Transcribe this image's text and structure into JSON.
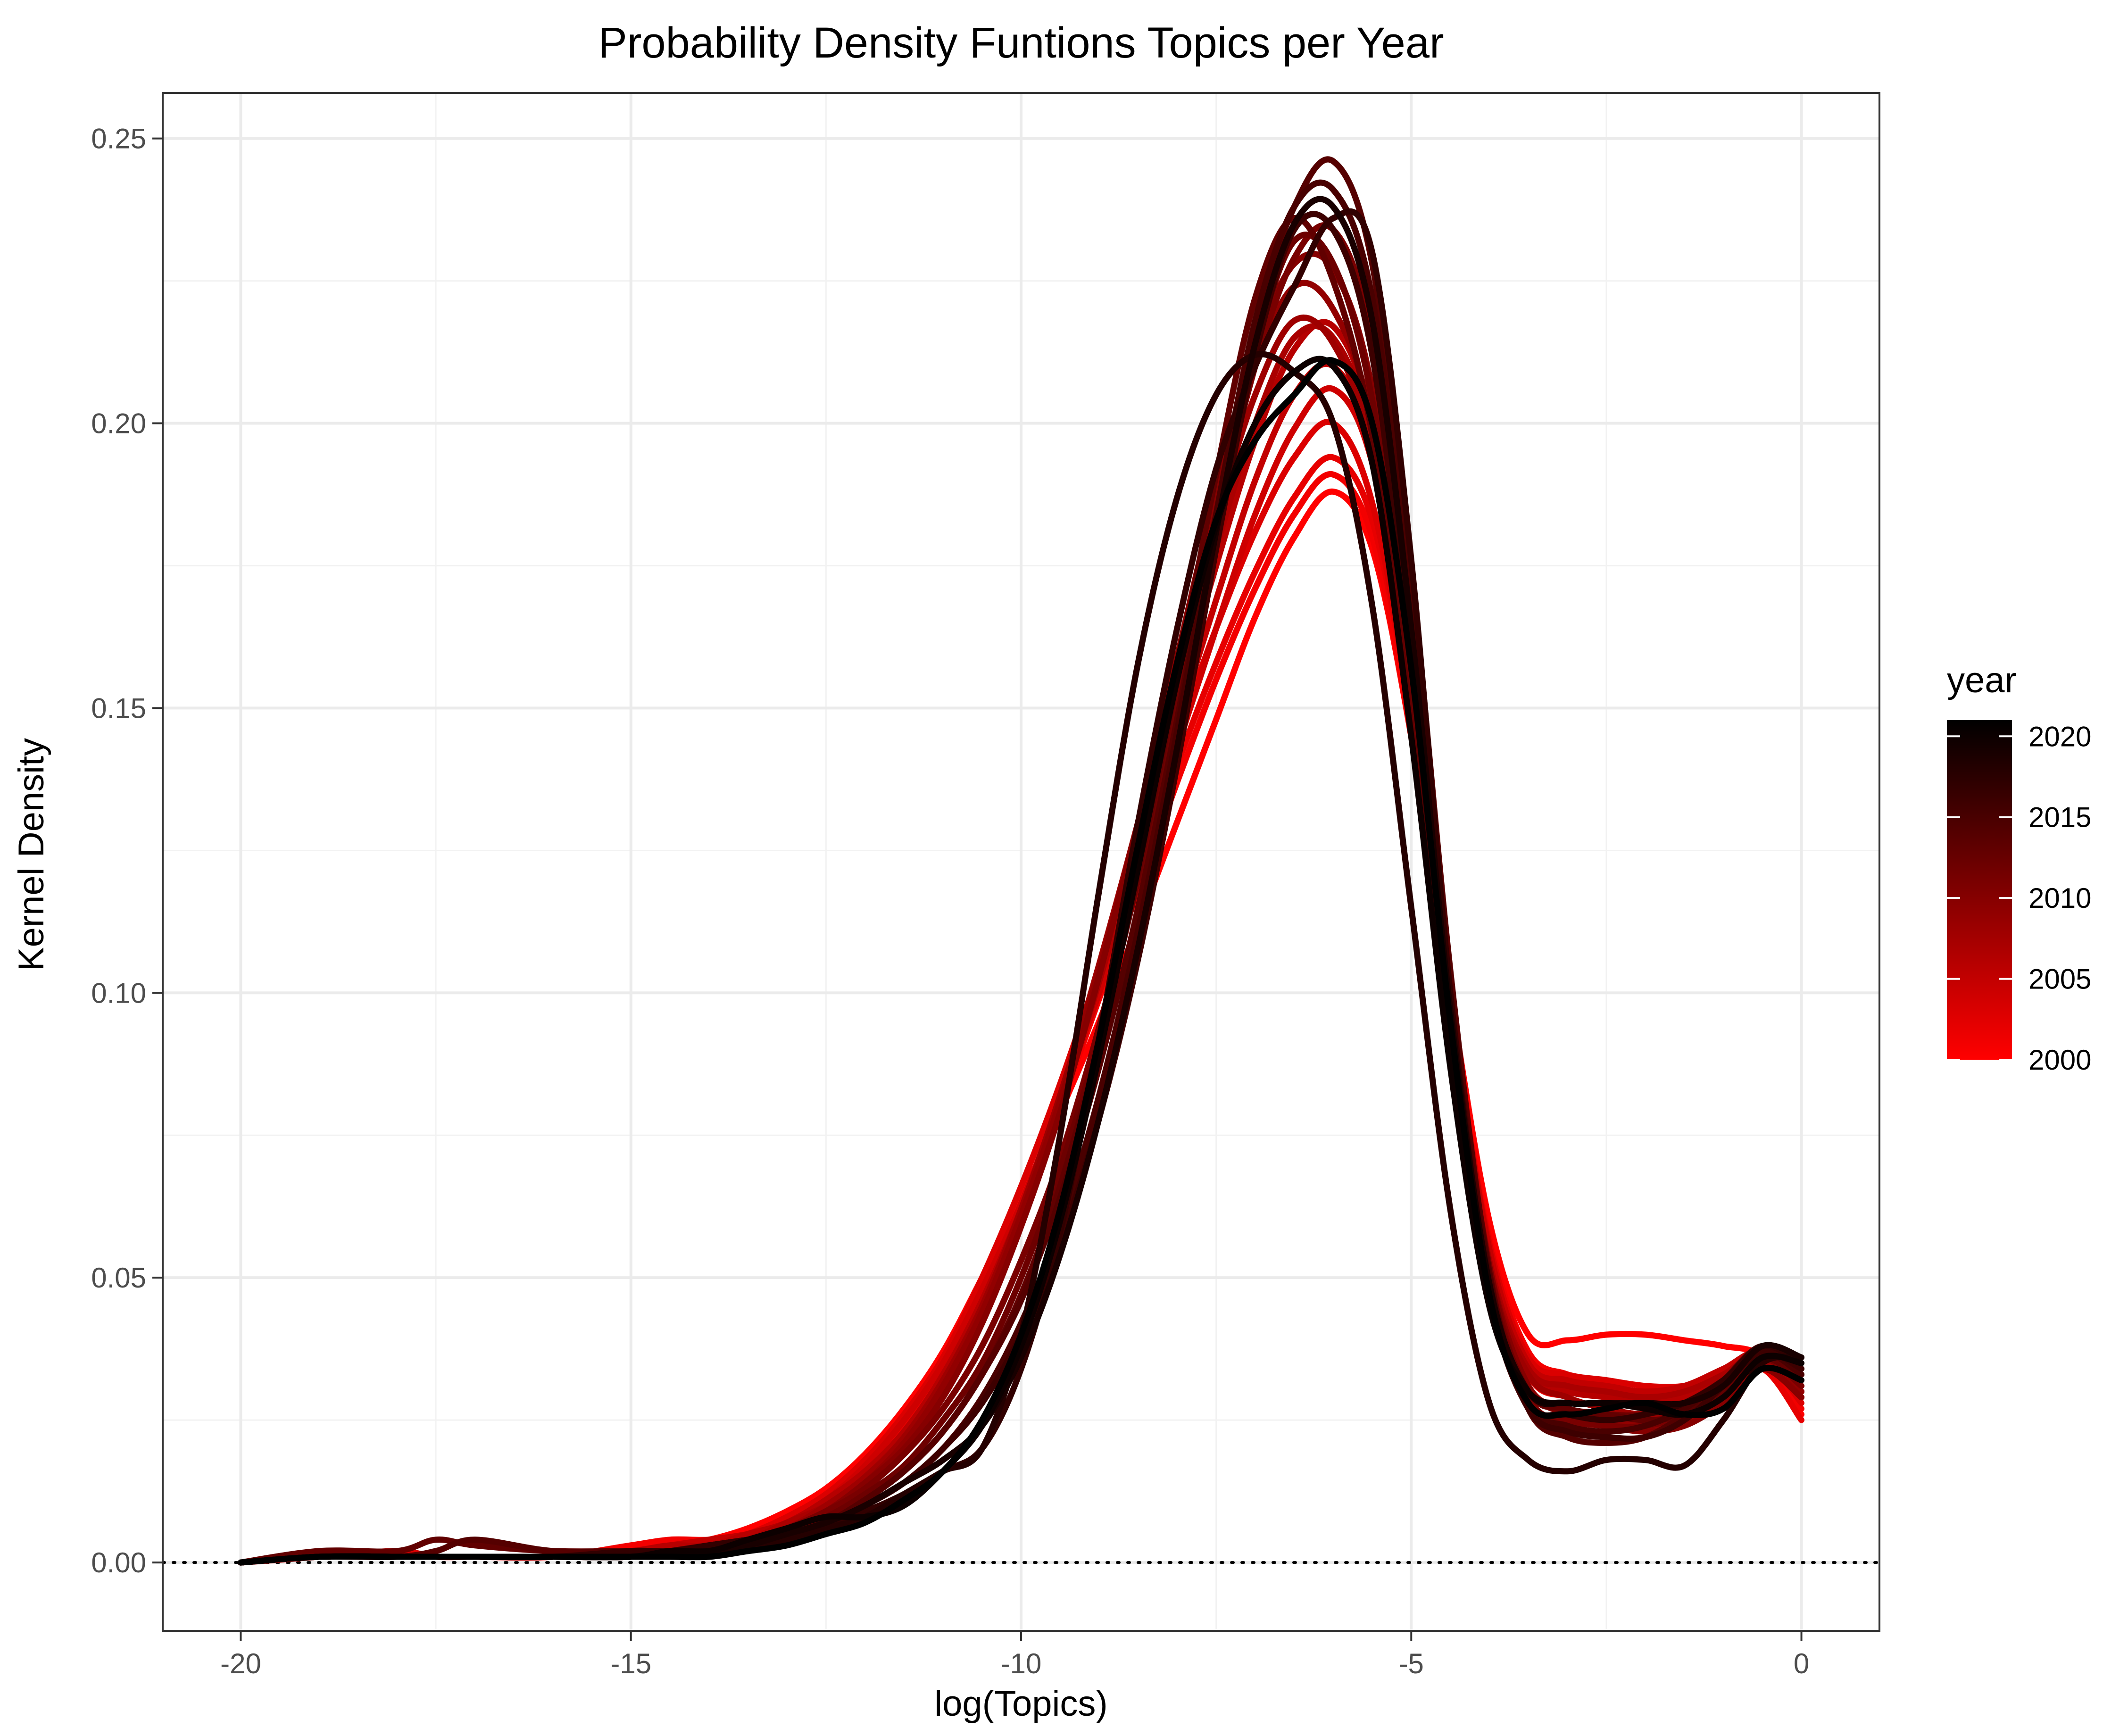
{
  "chart_data": {
    "type": "line",
    "title": "Probability Density Funtions Topics per Year",
    "xlabel": "log(Topics)",
    "ylabel": "Kernel Density",
    "xlim": [
      -21,
      1
    ],
    "ylim": [
      -0.012,
      0.258
    ],
    "x_ticks": [
      -20,
      -15,
      -10,
      -5,
      0
    ],
    "x_tick_labels": [
      "-20",
      "-15",
      "-10",
      "-5",
      "0"
    ],
    "y_ticks": [
      0.0,
      0.05,
      0.1,
      0.15,
      0.2,
      0.25
    ],
    "y_tick_labels": [
      "0.00",
      "0.05",
      "0.10",
      "0.15",
      "0.20",
      "0.25"
    ],
    "grid": true,
    "reference_line": {
      "y": 0,
      "style": "dotted"
    },
    "color_scale": {
      "variable": "year",
      "title": "year",
      "low": {
        "value": 2000,
        "color": "#ff0000"
      },
      "high": {
        "value": 2021,
        "color": "#000000"
      },
      "breaks": [
        2000,
        2005,
        2010,
        2015,
        2020
      ],
      "break_labels": [
        "2000",
        "2005",
        "2010",
        "2015",
        "2020"
      ],
      "legend_position": "right"
    },
    "x": [
      -20,
      -19,
      -18,
      -17.5,
      -17,
      -16,
      -15,
      -14.5,
      -14,
      -13.5,
      -13,
      -12.5,
      -12,
      -11.5,
      -11,
      -10.5,
      -10,
      -9.5,
      -9,
      -8.5,
      -8,
      -7.5,
      -7,
      -6.5,
      -6,
      -5.5,
      -5,
      -4.5,
      -4,
      -3.5,
      -3,
      -2.5,
      -2,
      -1.5,
      -1,
      -0.5,
      0
    ],
    "series": [
      {
        "year": 2000,
        "values": [
          0,
          0.001,
          0.001,
          0.001,
          0.001,
          0.001,
          0.002,
          0.003,
          0.004,
          0.006,
          0.009,
          0.013,
          0.019,
          0.027,
          0.037,
          0.05,
          0.064,
          0.079,
          0.095,
          0.112,
          0.13,
          0.148,
          0.166,
          0.18,
          0.188,
          0.178,
          0.145,
          0.1,
          0.06,
          0.04,
          0.039,
          0.04,
          0.04,
          0.039,
          0.038,
          0.036,
          0.026
        ]
      },
      {
        "year": 2001,
        "values": [
          0,
          0.001,
          0.001,
          0.001,
          0.001,
          0.001,
          0.003,
          0.004,
          0.004,
          0.005,
          0.007,
          0.011,
          0.016,
          0.024,
          0.035,
          0.048,
          0.063,
          0.08,
          0.099,
          0.118,
          0.137,
          0.155,
          0.171,
          0.184,
          0.191,
          0.18,
          0.145,
          0.097,
          0.057,
          0.037,
          0.033,
          0.031,
          0.03,
          0.031,
          0.033,
          0.035,
          0.027
        ]
      },
      {
        "year": 2002,
        "values": [
          0,
          0.001,
          0.001,
          0.001,
          0.001,
          0.001,
          0.001,
          0.002,
          0.002,
          0.003,
          0.006,
          0.01,
          0.016,
          0.024,
          0.035,
          0.048,
          0.063,
          0.081,
          0.1,
          0.12,
          0.14,
          0.158,
          0.174,
          0.187,
          0.194,
          0.183,
          0.148,
          0.098,
          0.055,
          0.033,
          0.029,
          0.027,
          0.026,
          0.027,
          0.03,
          0.034,
          0.025
        ]
      },
      {
        "year": 2003,
        "values": [
          0,
          0.001,
          0.002,
          0.001,
          0.001,
          0.001,
          0.002,
          0.003,
          0.003,
          0.005,
          0.008,
          0.012,
          0.018,
          0.026,
          0.036,
          0.05,
          0.066,
          0.084,
          0.104,
          0.124,
          0.145,
          0.164,
          0.181,
          0.194,
          0.2,
          0.186,
          0.148,
          0.097,
          0.056,
          0.036,
          0.033,
          0.032,
          0.031,
          0.031,
          0.033,
          0.036,
          0.028
        ]
      },
      {
        "year": 2004,
        "values": [
          0,
          0.001,
          0.001,
          0.001,
          0.001,
          0.001,
          0.002,
          0.003,
          0.003,
          0.004,
          0.007,
          0.011,
          0.017,
          0.025,
          0.035,
          0.048,
          0.063,
          0.081,
          0.1,
          0.121,
          0.143,
          0.164,
          0.184,
          0.199,
          0.206,
          0.193,
          0.153,
          0.099,
          0.055,
          0.034,
          0.031,
          0.03,
          0.029,
          0.029,
          0.032,
          0.036,
          0.029
        ]
      },
      {
        "year": 2005,
        "values": [
          0,
          0.001,
          0.001,
          0.001,
          0.001,
          0.001,
          0.002,
          0.003,
          0.004,
          0.005,
          0.007,
          0.011,
          0.016,
          0.023,
          0.033,
          0.046,
          0.062,
          0.081,
          0.102,
          0.124,
          0.147,
          0.169,
          0.19,
          0.205,
          0.21,
          0.195,
          0.153,
          0.098,
          0.055,
          0.035,
          0.032,
          0.031,
          0.03,
          0.031,
          0.034,
          0.037,
          0.03
        ]
      },
      {
        "year": 2006,
        "values": [
          0,
          0.001,
          0.001,
          0.001,
          0.001,
          0.001,
          0.002,
          0.003,
          0.003,
          0.005,
          0.007,
          0.011,
          0.016,
          0.023,
          0.033,
          0.046,
          0.062,
          0.081,
          0.103,
          0.126,
          0.151,
          0.175,
          0.197,
          0.213,
          0.217,
          0.2,
          0.155,
          0.097,
          0.052,
          0.033,
          0.03,
          0.029,
          0.028,
          0.029,
          0.032,
          0.036,
          0.029
        ]
      },
      {
        "year": 2007,
        "values": [
          0,
          0.001,
          0.001,
          0.001,
          0.001,
          0.001,
          0.002,
          0.002,
          0.003,
          0.004,
          0.007,
          0.01,
          0.015,
          0.022,
          0.032,
          0.045,
          0.061,
          0.08,
          0.102,
          0.126,
          0.152,
          0.178,
          0.2,
          0.215,
          0.215,
          0.197,
          0.152,
          0.096,
          0.053,
          0.034,
          0.031,
          0.03,
          0.029,
          0.03,
          0.033,
          0.037,
          0.031
        ]
      },
      {
        "year": 2008,
        "values": [
          0,
          0.001,
          0.001,
          0.001,
          0.001,
          0.001,
          0.002,
          0.002,
          0.003,
          0.004,
          0.006,
          0.01,
          0.015,
          0.022,
          0.032,
          0.045,
          0.062,
          0.082,
          0.105,
          0.13,
          0.157,
          0.183,
          0.205,
          0.218,
          0.214,
          0.195,
          0.15,
          0.094,
          0.052,
          0.033,
          0.029,
          0.027,
          0.026,
          0.027,
          0.031,
          0.036,
          0.03
        ]
      },
      {
        "year": 2009,
        "values": [
          0,
          0.001,
          0.001,
          0.001,
          0.001,
          0.001,
          0.002,
          0.002,
          0.003,
          0.004,
          0.006,
          0.009,
          0.014,
          0.021,
          0.031,
          0.044,
          0.061,
          0.081,
          0.104,
          0.13,
          0.158,
          0.186,
          0.21,
          0.224,
          0.22,
          0.2,
          0.153,
          0.095,
          0.051,
          0.031,
          0.027,
          0.025,
          0.024,
          0.025,
          0.029,
          0.035,
          0.03
        ]
      },
      {
        "year": 2010,
        "values": [
          0,
          0.001,
          0.001,
          0.001,
          0.001,
          0.001,
          0.002,
          0.002,
          0.003,
          0.004,
          0.006,
          0.009,
          0.014,
          0.02,
          0.029,
          0.042,
          0.059,
          0.079,
          0.103,
          0.13,
          0.159,
          0.188,
          0.213,
          0.228,
          0.227,
          0.206,
          0.157,
          0.096,
          0.052,
          0.031,
          0.026,
          0.024,
          0.023,
          0.024,
          0.028,
          0.034,
          0.029
        ]
      },
      {
        "year": 2011,
        "values": [
          0,
          0.001,
          0.001,
          0.001,
          0.001,
          0.001,
          0.002,
          0.002,
          0.003,
          0.004,
          0.006,
          0.009,
          0.013,
          0.019,
          0.027,
          0.038,
          0.053,
          0.071,
          0.094,
          0.121,
          0.151,
          0.182,
          0.21,
          0.229,
          0.234,
          0.215,
          0.165,
          0.1,
          0.052,
          0.029,
          0.025,
          0.024,
          0.024,
          0.026,
          0.031,
          0.036,
          0.031
        ]
      },
      {
        "year": 2012,
        "values": [
          0,
          0.001,
          0.001,
          0.001,
          0.001,
          0.001,
          0.002,
          0.002,
          0.003,
          0.004,
          0.006,
          0.008,
          0.012,
          0.017,
          0.025,
          0.035,
          0.05,
          0.069,
          0.092,
          0.12,
          0.151,
          0.184,
          0.213,
          0.232,
          0.228,
          0.204,
          0.154,
          0.094,
          0.05,
          0.03,
          0.027,
          0.026,
          0.026,
          0.028,
          0.032,
          0.037,
          0.033
        ]
      },
      {
        "year": 2013,
        "values": [
          0,
          0.002,
          0.002,
          0.004,
          0.003,
          0.002,
          0.002,
          0.002,
          0.003,
          0.004,
          0.005,
          0.007,
          0.011,
          0.016,
          0.023,
          0.033,
          0.047,
          0.066,
          0.091,
          0.121,
          0.155,
          0.191,
          0.222,
          0.236,
          0.225,
          0.198,
          0.147,
          0.088,
          0.048,
          0.03,
          0.027,
          0.026,
          0.025,
          0.026,
          0.03,
          0.036,
          0.032
        ]
      },
      {
        "year": 2014,
        "values": [
          0,
          0.001,
          0.001,
          0.002,
          0.004,
          0.002,
          0.002,
          0.002,
          0.003,
          0.004,
          0.005,
          0.007,
          0.011,
          0.016,
          0.023,
          0.033,
          0.046,
          0.064,
          0.087,
          0.115,
          0.148,
          0.184,
          0.217,
          0.238,
          0.246,
          0.228,
          0.174,
          0.104,
          0.051,
          0.027,
          0.022,
          0.021,
          0.022,
          0.026,
          0.032,
          0.038,
          0.034
        ]
      },
      {
        "year": 2015,
        "values": [
          0,
          0.001,
          0.001,
          0.001,
          0.001,
          0.001,
          0.001,
          0.002,
          0.003,
          0.004,
          0.005,
          0.007,
          0.01,
          0.014,
          0.02,
          0.029,
          0.042,
          0.059,
          0.082,
          0.111,
          0.146,
          0.184,
          0.218,
          0.238,
          0.241,
          0.222,
          0.168,
          0.1,
          0.05,
          0.028,
          0.024,
          0.023,
          0.024,
          0.027,
          0.032,
          0.037,
          0.033
        ]
      },
      {
        "year": 2016,
        "values": [
          0,
          0.001,
          0.001,
          0.001,
          0.001,
          0.001,
          0.001,
          0.002,
          0.002,
          0.003,
          0.005,
          0.007,
          0.01,
          0.014,
          0.02,
          0.028,
          0.04,
          0.056,
          0.078,
          0.106,
          0.14,
          0.178,
          0.212,
          0.234,
          0.234,
          0.212,
          0.158,
          0.093,
          0.047,
          0.027,
          0.023,
          0.022,
          0.022,
          0.025,
          0.031,
          0.037,
          0.034
        ]
      },
      {
        "year": 2017,
        "values": [
          0,
          0.001,
          0.001,
          0.001,
          0.001,
          0.001,
          0.002,
          0.002,
          0.003,
          0.004,
          0.005,
          0.007,
          0.009,
          0.012,
          0.016,
          0.02,
          0.034,
          0.058,
          0.092,
          0.13,
          0.164,
          0.192,
          0.21,
          0.224,
          0.236,
          0.23,
          0.176,
          0.1,
          0.048,
          0.028,
          0.026,
          0.025,
          0.026,
          0.028,
          0.032,
          0.038,
          0.035
        ]
      },
      {
        "year": 2018,
        "values": [
          0,
          0.001,
          0.001,
          0.001,
          0.001,
          0.001,
          0.001,
          0.002,
          0.002,
          0.003,
          0.004,
          0.006,
          0.008,
          0.012,
          0.016,
          0.02,
          0.04,
          0.075,
          0.118,
          0.158,
          0.187,
          0.205,
          0.212,
          0.209,
          0.2,
          0.168,
          0.115,
          0.062,
          0.028,
          0.018,
          0.016,
          0.018,
          0.018,
          0.017,
          0.025,
          0.035,
          0.036
        ]
      },
      {
        "year": 2019,
        "values": [
          0,
          0.001,
          0.001,
          0.001,
          0.001,
          0.001,
          0.001,
          0.002,
          0.002,
          0.003,
          0.005,
          0.007,
          0.01,
          0.014,
          0.018,
          0.024,
          0.036,
          0.054,
          0.078,
          0.108,
          0.143,
          0.181,
          0.214,
          0.235,
          0.238,
          0.218,
          0.164,
          0.097,
          0.049,
          0.03,
          0.028,
          0.028,
          0.028,
          0.028,
          0.031,
          0.038,
          0.036
        ]
      },
      {
        "year": 2020,
        "values": [
          0,
          0.001,
          0.001,
          0.001,
          0.001,
          0.001,
          0.001,
          0.002,
          0.002,
          0.004,
          0.006,
          0.008,
          0.008,
          0.01,
          0.016,
          0.024,
          0.038,
          0.06,
          0.089,
          0.122,
          0.155,
          0.182,
          0.2,
          0.209,
          0.21,
          0.193,
          0.145,
          0.087,
          0.045,
          0.03,
          0.028,
          0.028,
          0.027,
          0.026,
          0.029,
          0.036,
          0.035
        ]
      },
      {
        "year": 2021,
        "values": [
          0,
          0.001,
          0.001,
          0.001,
          0.001,
          0.001,
          0.001,
          0.001,
          0.001,
          0.002,
          0.003,
          0.005,
          0.007,
          0.011,
          0.016,
          0.025,
          0.04,
          0.062,
          0.092,
          0.126,
          0.158,
          0.183,
          0.197,
          0.205,
          0.211,
          0.2,
          0.157,
          0.095,
          0.047,
          0.028,
          0.026,
          0.027,
          0.028,
          0.026,
          0.027,
          0.034,
          0.032
        ]
      }
    ]
  }
}
